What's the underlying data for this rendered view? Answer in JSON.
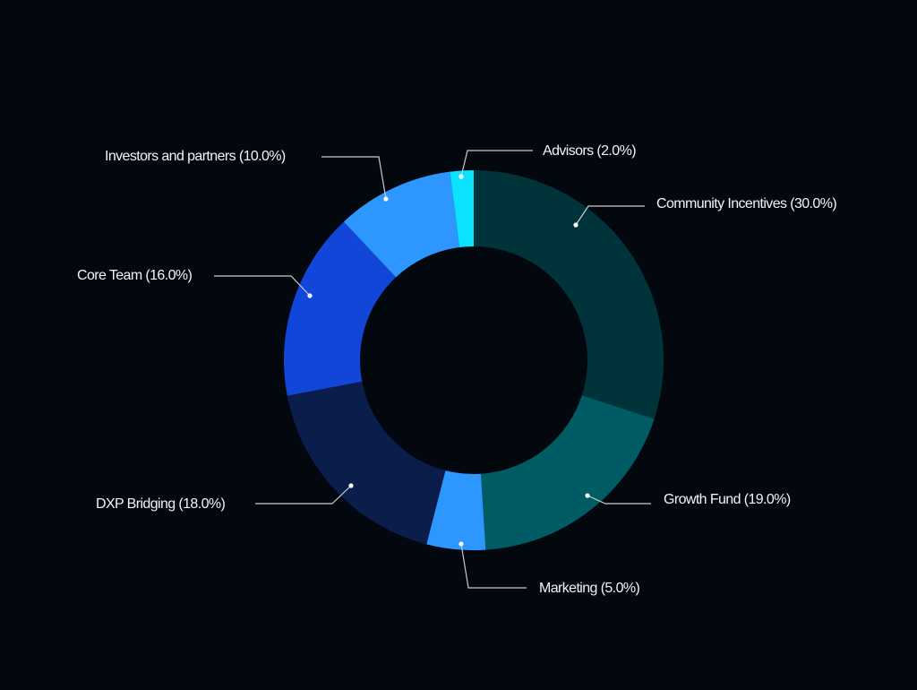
{
  "chart_data": {
    "type": "pie",
    "subtype": "donut",
    "title": "",
    "start_angle": "12 o'clock, clockwise",
    "slices": [
      {
        "label": "Community Incentives",
        "value": 30.0,
        "display": "Community Incentives (30.0%)",
        "color": "#00343a"
      },
      {
        "label": "Growth Fund",
        "value": 19.0,
        "display": "Growth Fund (19.0%)",
        "color": "#005c64"
      },
      {
        "label": "Marketing",
        "value": 5.0,
        "display": "Marketing (5.0%)",
        "color": "#2e96ff"
      },
      {
        "label": "DXP Bridging",
        "value": 18.0,
        "display": "DXP Bridging (18.0%)",
        "color": "#0a1d4b"
      },
      {
        "label": "Core Team",
        "value": 16.0,
        "display": "Core Team (16.0%)",
        "color": "#1146d8"
      },
      {
        "label": "Investors and partners",
        "value": 10.0,
        "display": "Investors and partners (10.0%)",
        "color": "#2e96ff"
      },
      {
        "label": "Advisors",
        "value": 2.0,
        "display": "Advisors (2.0%)",
        "color": "#0ae2ff"
      }
    ],
    "legend": "callout labels with leader lines",
    "background": "#03070e"
  }
}
